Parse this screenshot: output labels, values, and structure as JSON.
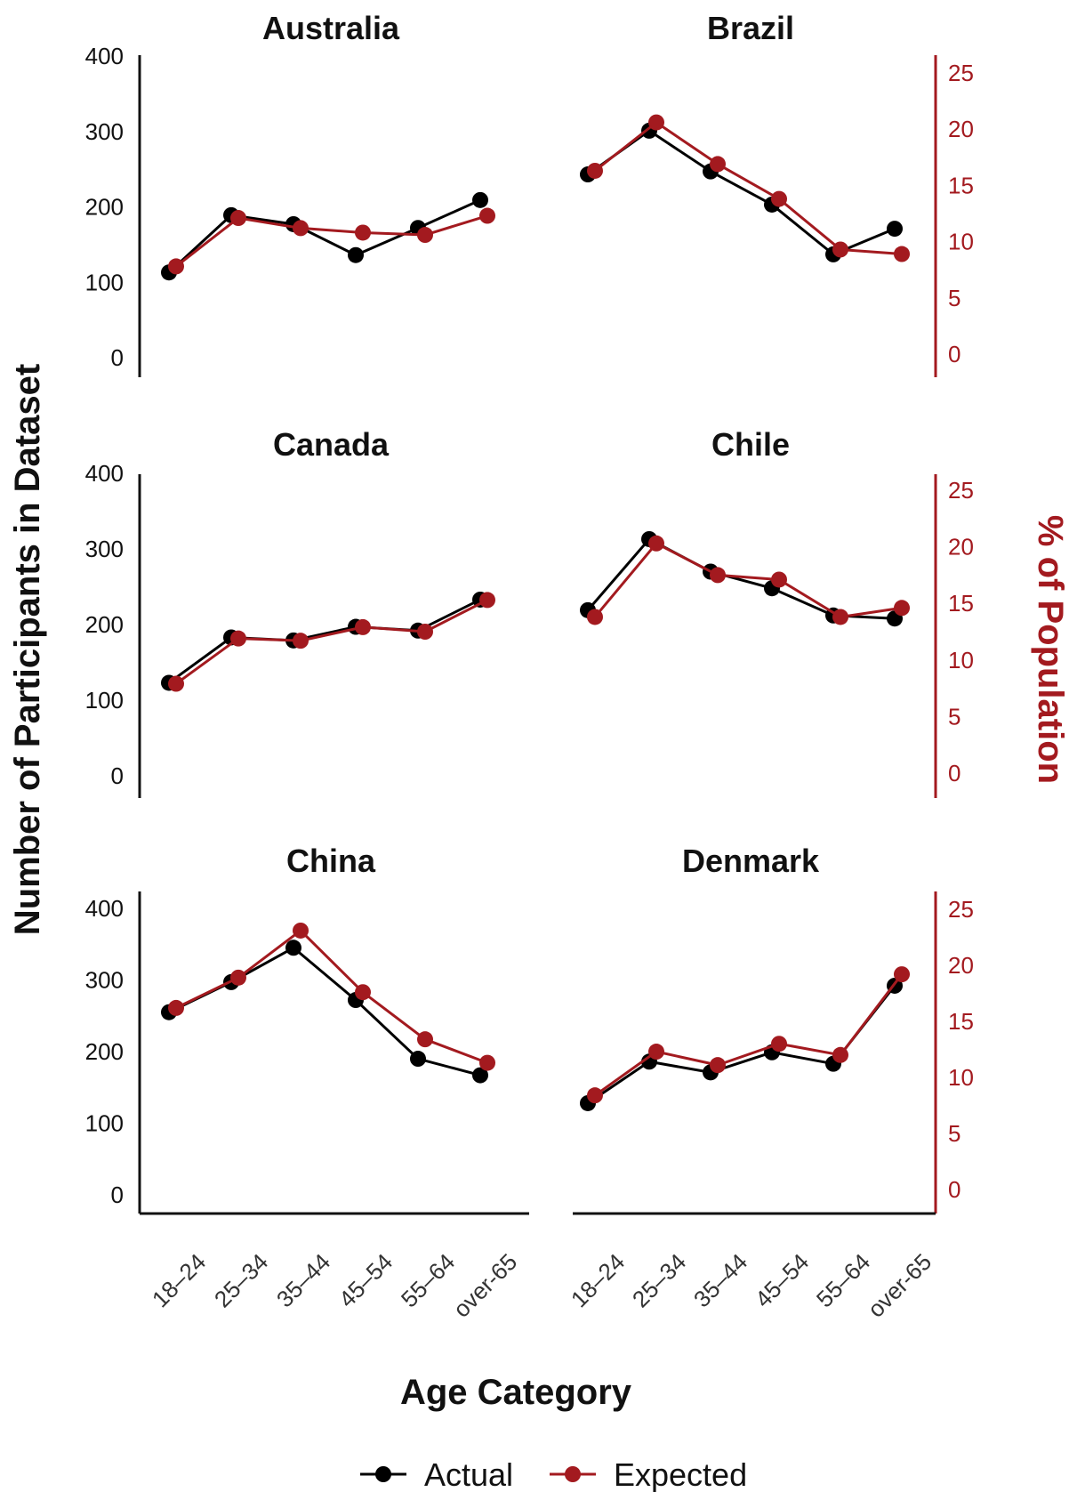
{
  "chart_data": {
    "type": "line",
    "layout": "facet-grid-3x2",
    "xlabel": "Age Category",
    "ylabel_left": "Number of Participants in Dataset",
    "ylabel_right": "% of Population",
    "ylim_left": [
      0,
      400
    ],
    "ylim_right": [
      0,
      25
    ],
    "yticks_left": [
      0,
      100,
      200,
      300,
      400
    ],
    "yticks_right": [
      0,
      5,
      10,
      15,
      20,
      25
    ],
    "categories": [
      "18–24",
      "25–34",
      "35–44",
      "45–54",
      "55–64",
      "over-65"
    ],
    "grid": false,
    "legend_position": "bottom",
    "colors": {
      "actual": "#000000",
      "expected": "#a31a1f"
    },
    "legend": [
      {
        "name": "Actual",
        "color": "#000000"
      },
      {
        "name": "Expected",
        "color": "#a31a1f"
      }
    ],
    "panels": [
      {
        "title": "Australia",
        "series": [
          {
            "name": "Actual",
            "axis": "left",
            "values": [
              113,
              189,
              177,
              136,
              172,
              209
            ]
          },
          {
            "name": "Expected",
            "axis": "right",
            "values": [
              7.8,
              12.1,
              11.2,
              10.8,
              10.6,
              12.3
            ]
          }
        ]
      },
      {
        "title": "Brazil",
        "series": [
          {
            "name": "Actual",
            "axis": "left",
            "values": [
              243,
              301,
              247,
              203,
              137,
              171
            ]
          },
          {
            "name": "Expected",
            "axis": "right",
            "values": [
              16.3,
              20.6,
              16.9,
              13.8,
              9.3,
              8.9
            ]
          }
        ]
      },
      {
        "title": "Canada",
        "series": [
          {
            "name": "Actual",
            "axis": "left",
            "values": [
              123,
              183,
              179,
              197,
              192,
              233
            ]
          },
          {
            "name": "Expected",
            "axis": "right",
            "values": [
              7.9,
              11.9,
              11.7,
              12.9,
              12.5,
              15.3
            ]
          }
        ]
      },
      {
        "title": "Chile",
        "series": [
          {
            "name": "Actual",
            "axis": "left",
            "values": [
              219,
              313,
              270,
              248,
              212,
              208
            ]
          },
          {
            "name": "Expected",
            "axis": "right",
            "values": [
              13.8,
              20.3,
              17.5,
              17.1,
              13.8,
              14.6
            ]
          }
        ]
      },
      {
        "title": "China",
        "series": [
          {
            "name": "Actual",
            "axis": "left",
            "values": [
              255,
              297,
              345,
              272,
              190,
              167
            ]
          },
          {
            "name": "Expected",
            "axis": "right",
            "values": [
              16.2,
              18.9,
              23.1,
              17.6,
              13.4,
              11.3
            ]
          }
        ]
      },
      {
        "title": "Denmark",
        "series": [
          {
            "name": "Actual",
            "axis": "left",
            "values": [
              128,
              186,
              171,
              199,
              183,
              292
            ]
          },
          {
            "name": "Expected",
            "axis": "right",
            "values": [
              8.4,
              12.3,
              11.1,
              13.0,
              12.0,
              19.2
            ]
          }
        ]
      }
    ]
  }
}
